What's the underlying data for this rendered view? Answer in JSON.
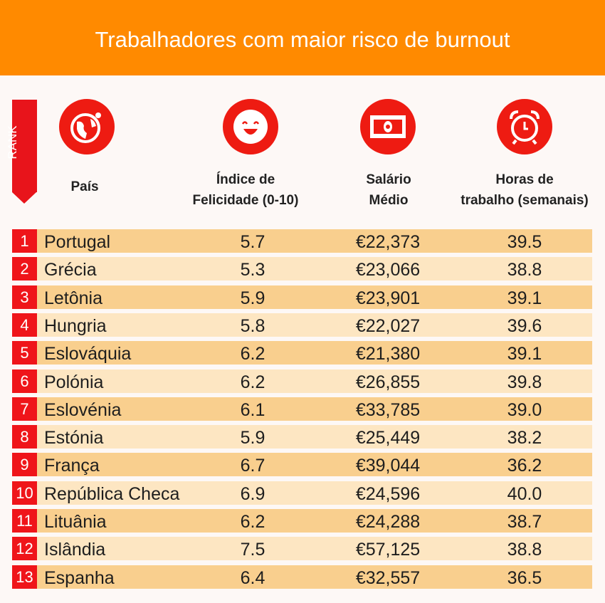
{
  "title": "Trabalhadores com maior risco de burnout",
  "rank_label": "RANK",
  "icons": [
    "globe-icon",
    "smiley-icon",
    "banknote-icon",
    "alarm-clock-icon"
  ],
  "colors": {
    "header": "#ff8a00",
    "accent": "#ee1b12",
    "row_dark": "#f9cf8e",
    "row_light": "#fde6c2"
  },
  "chart_data": {
    "type": "table",
    "title": "Trabalhadores com maior risco de burnout",
    "columns": [
      "País",
      "Índice de Felicidade (0-10)",
      "Salário Médio",
      "Horas de trabalho (semanais)"
    ],
    "column_lines": [
      [
        "País"
      ],
      [
        "Índice de",
        "Felicidade (0-10)"
      ],
      [
        "Salário",
        "Médio"
      ],
      [
        "Horas de",
        "trabalho (semanais)"
      ]
    ],
    "rows": [
      {
        "rank": "1",
        "country": "Portugal",
        "happiness": "5.7",
        "salary": "€22,373",
        "hours": "39.5"
      },
      {
        "rank": "2",
        "country": "Grécia",
        "happiness": "5.3",
        "salary": "€23,066",
        "hours": "38.8"
      },
      {
        "rank": "3",
        "country": "Letônia",
        "happiness": "5.9",
        "salary": "€23,901",
        "hours": "39.1"
      },
      {
        "rank": "4",
        "country": "Hungria",
        "happiness": "5.8",
        "salary": "€22,027",
        "hours": "39.6"
      },
      {
        "rank": "5",
        "country": "Eslováquia",
        "happiness": "6.2",
        "salary": "€21,380",
        "hours": "39.1"
      },
      {
        "rank": "6",
        "country": "Polónia",
        "happiness": "6.2",
        "salary": "€26,855",
        "hours": "39.8"
      },
      {
        "rank": "7",
        "country": "Eslovénia",
        "happiness": "6.1",
        "salary": "€33,785",
        "hours": "39.0"
      },
      {
        "rank": "8",
        "country": "Estónia",
        "happiness": "5.9",
        "salary": "€25,449",
        "hours": "38.2"
      },
      {
        "rank": "9",
        "country": "França",
        "happiness": "6.7",
        "salary": "€39,044",
        "hours": "36.2"
      },
      {
        "rank": "10",
        "country": "República Checa",
        "happiness": "6.9",
        "salary": "€24,596",
        "hours": "40.0"
      },
      {
        "rank": "11",
        "country": "Lituânia",
        "happiness": "6.2",
        "salary": "€24,288",
        "hours": "38.7"
      },
      {
        "rank": "12",
        "country": "Islândia",
        "happiness": "7.5",
        "salary": "€57,125",
        "hours": "38.8"
      },
      {
        "rank": "13",
        "country": "Espanha",
        "happiness": "6.4",
        "salary": "€32,557",
        "hours": "36.5"
      }
    ]
  }
}
